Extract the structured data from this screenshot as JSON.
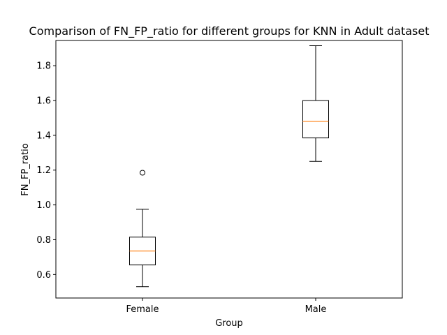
{
  "chart_data": {
    "type": "box",
    "title": "Comparison of FN_FP_ratio for different groups for KNN in Adult dataset",
    "xlabel": "Group",
    "ylabel": "FN_FP_ratio",
    "ylim": [
      0.465,
      1.945
    ],
    "yticks": [
      "0.6",
      "0.8",
      "1.0",
      "1.2",
      "1.4",
      "1.6",
      "1.8"
    ],
    "yticks_values": [
      0.6,
      0.8,
      1.0,
      1.2,
      1.4,
      1.6,
      1.8
    ],
    "grid": false,
    "categories": [
      "Female",
      "Male"
    ],
    "boxes": [
      {
        "name": "Female",
        "whisker_low": 0.53,
        "q1": 0.655,
        "median": 0.735,
        "q3": 0.815,
        "whisker_high": 0.975,
        "outliers": [
          1.185
        ]
      },
      {
        "name": "Male",
        "whisker_low": 1.25,
        "q1": 1.385,
        "median": 1.48,
        "q3": 1.6,
        "whisker_high": 1.915,
        "outliers": []
      }
    ],
    "colors": {
      "box": "#000000",
      "median": "#ff7f0e",
      "outlier": "#000000"
    }
  }
}
